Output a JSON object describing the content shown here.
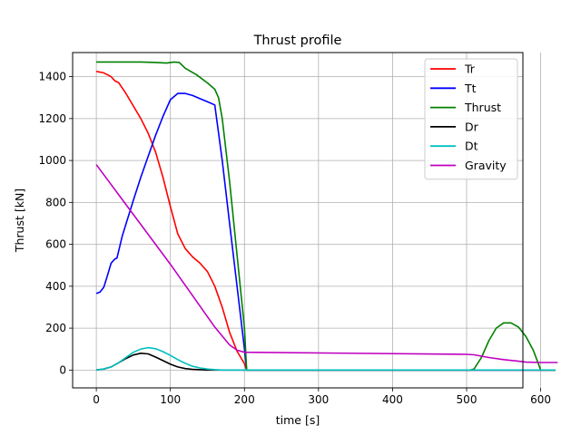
{
  "chart_data": {
    "type": "line",
    "title": "Thrust profile",
    "xlabel": "time [s]",
    "ylabel": "Thrust [kN]",
    "xlim": [
      -32,
      576
    ],
    "ylim": [
      -85,
      1515
    ],
    "xticks": [
      0,
      100,
      200,
      300,
      400,
      500,
      600
    ],
    "yticks": [
      0,
      200,
      400,
      600,
      800,
      1000,
      1200,
      1400
    ],
    "grid": true,
    "legend_position": "top-right",
    "series": [
      {
        "name": "Tr",
        "color": "#ff0000",
        "points": [
          [
            0,
            1425
          ],
          [
            10,
            1418
          ],
          [
            20,
            1400
          ],
          [
            25,
            1380
          ],
          [
            30,
            1372
          ],
          [
            40,
            1320
          ],
          [
            60,
            1200
          ],
          [
            70,
            1130
          ],
          [
            80,
            1040
          ],
          [
            90,
            920
          ],
          [
            100,
            780
          ],
          [
            110,
            650
          ],
          [
            120,
            580
          ],
          [
            130,
            540
          ],
          [
            140,
            510
          ],
          [
            150,
            470
          ],
          [
            160,
            400
          ],
          [
            170,
            300
          ],
          [
            180,
            180
          ],
          [
            190,
            90
          ],
          [
            200,
            30
          ],
          [
            203,
            0
          ],
          [
            510,
            0
          ],
          [
            620,
            0
          ]
        ]
      },
      {
        "name": "Tt",
        "color": "#0000ff",
        "points": [
          [
            0,
            365
          ],
          [
            5,
            372
          ],
          [
            10,
            395
          ],
          [
            15,
            450
          ],
          [
            20,
            510
          ],
          [
            25,
            530
          ],
          [
            28,
            535
          ],
          [
            35,
            640
          ],
          [
            50,
            810
          ],
          [
            60,
            920
          ],
          [
            70,
            1020
          ],
          [
            80,
            1120
          ],
          [
            90,
            1210
          ],
          [
            100,
            1290
          ],
          [
            110,
            1320
          ],
          [
            120,
            1320
          ],
          [
            130,
            1310
          ],
          [
            140,
            1295
          ],
          [
            150,
            1280
          ],
          [
            160,
            1265
          ],
          [
            170,
            1000
          ],
          [
            180,
            700
          ],
          [
            190,
            400
          ],
          [
            200,
            100
          ],
          [
            203,
            0
          ],
          [
            510,
            0
          ],
          [
            620,
            0
          ]
        ]
      },
      {
        "name": "Thrust",
        "color": "#008000",
        "points": [
          [
            0,
            1470
          ],
          [
            30,
            1470
          ],
          [
            60,
            1470
          ],
          [
            80,
            1468
          ],
          [
            95,
            1465
          ],
          [
            105,
            1470
          ],
          [
            112,
            1468
          ],
          [
            120,
            1440
          ],
          [
            135,
            1410
          ],
          [
            150,
            1370
          ],
          [
            160,
            1340
          ],
          [
            165,
            1300
          ],
          [
            170,
            1200
          ],
          [
            180,
            900
          ],
          [
            190,
            550
          ],
          [
            200,
            200
          ],
          [
            203,
            0
          ],
          [
            505,
            0
          ],
          [
            510,
            5
          ],
          [
            520,
            60
          ],
          [
            530,
            140
          ],
          [
            540,
            200
          ],
          [
            550,
            225
          ],
          [
            560,
            225
          ],
          [
            570,
            205
          ],
          [
            580,
            160
          ],
          [
            590,
            95
          ],
          [
            598,
            20
          ],
          [
            600,
            0
          ],
          [
            620,
            0
          ]
        ]
      },
      {
        "name": "Dr",
        "color": "#000000",
        "points": [
          [
            0,
            0
          ],
          [
            10,
            5
          ],
          [
            20,
            15
          ],
          [
            30,
            35
          ],
          [
            40,
            55
          ],
          [
            50,
            72
          ],
          [
            60,
            80
          ],
          [
            70,
            77
          ],
          [
            80,
            62
          ],
          [
            90,
            45
          ],
          [
            100,
            28
          ],
          [
            110,
            15
          ],
          [
            120,
            7
          ],
          [
            130,
            3
          ],
          [
            150,
            0
          ],
          [
            620,
            0
          ]
        ]
      },
      {
        "name": "Dt",
        "color": "#00bfbf",
        "points": [
          [
            0,
            0
          ],
          [
            10,
            5
          ],
          [
            20,
            15
          ],
          [
            30,
            35
          ],
          [
            40,
            60
          ],
          [
            50,
            85
          ],
          [
            60,
            100
          ],
          [
            70,
            107
          ],
          [
            80,
            102
          ],
          [
            90,
            88
          ],
          [
            100,
            70
          ],
          [
            110,
            50
          ],
          [
            120,
            32
          ],
          [
            130,
            18
          ],
          [
            140,
            10
          ],
          [
            150,
            5
          ],
          [
            160,
            2
          ],
          [
            170,
            0
          ],
          [
            620,
            0
          ]
        ]
      },
      {
        "name": "Gravity",
        "color": "#bf00bf",
        "points": [
          [
            0,
            980
          ],
          [
            100,
            505
          ],
          [
            160,
            205
          ],
          [
            180,
            120
          ],
          [
            190,
            95
          ],
          [
            200,
            85
          ],
          [
            500,
            75
          ],
          [
            510,
            73
          ],
          [
            530,
            60
          ],
          [
            550,
            50
          ],
          [
            570,
            42
          ],
          [
            580,
            38
          ],
          [
            600,
            36
          ],
          [
            623,
            36
          ]
        ]
      }
    ]
  }
}
